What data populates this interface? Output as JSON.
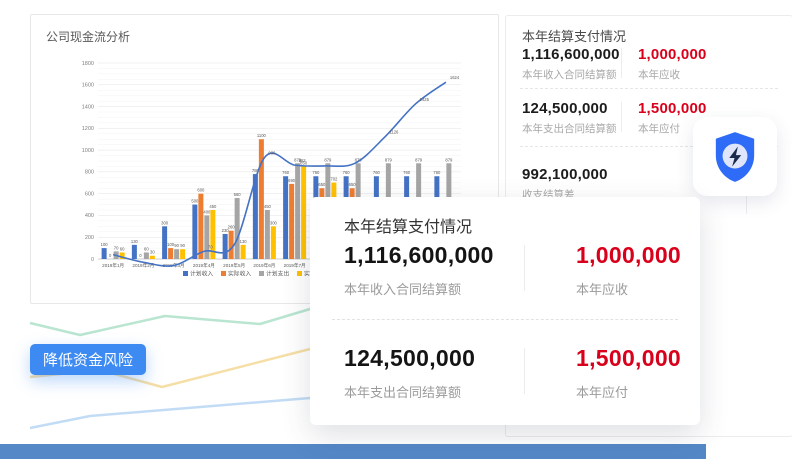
{
  "colors": {
    "badge_blue": "#3d8af2",
    "alert_red": "#d9001b",
    "strip_blue": "#5488c7",
    "shield_blue": "#2e6bf6",
    "bolt_navy": "#1b2a4a",
    "decor_green": "#b9e5d1",
    "decor_yellow": "#f6dfa6",
    "decor_blue": "#c3dcf5"
  },
  "chart_card": {
    "title": "公司现金流分析",
    "chart_data": {
      "type": "bar",
      "title": "公司现金流分析",
      "categories": [
        "2019年1月",
        "2019年2月",
        "2019年3月",
        "2019年4月",
        "2019年5月",
        "2019年6月",
        "2019年7月",
        "2019年8月",
        "2019年9月",
        "2019年10月",
        "2019年11月",
        "2019年12月"
      ],
      "series": [
        {
          "name": "计划收入",
          "color": "#4472c4",
          "values": [
            100,
            130,
            300,
            500,
            230,
            780,
            760,
            760,
            760,
            760,
            760,
            760
          ]
        },
        {
          "name": "实际收入",
          "color": "#ed7d31",
          "values": [
            0,
            0,
            100,
            600,
            260,
            1100,
            690,
            650,
            650,
            490,
            490,
            490
          ]
        },
        {
          "name": "计划支出",
          "color": "#a5a5a5",
          "values": [
            70,
            60,
            90,
            400,
            560,
            450,
            879,
            879,
            879,
            879,
            879,
            879
          ]
        },
        {
          "name": "实际支出",
          "color": "#ffc000",
          "values": [
            60,
            30,
            90,
            450,
            130,
            300,
            850,
            702,
            200,
            null,
            null,
            null
          ]
        }
      ],
      "line_series": {
        "name": "",
        "type": "line",
        "color": "#4472c4",
        "values": [
          40,
          -30,
          -60,
          70,
          130,
          930,
          862,
          855,
          880,
          1126,
          1425,
          1624
        ],
        "labels": [
          null,
          null,
          null,
          "70",
          null,
          "930",
          "862",
          null,
          null,
          "1126",
          "1425",
          "1624"
        ]
      },
      "xlabel": "",
      "ylabel": "",
      "ylim": [
        0,
        1800
      ],
      "ytick_step": 200,
      "grid": true,
      "legend_position": "bottom"
    }
  },
  "summary_panel": {
    "title": "本年结算支付情况",
    "rows": [
      {
        "left_value": "1,116,600,000",
        "left_label": "本年收入合同结算额",
        "right_value": "1,000,000",
        "right_label": "本年应收"
      },
      {
        "left_value": "124,500,000",
        "left_label": "本年支出合同结算额",
        "right_value": "1,500,000",
        "right_label": "本年应付"
      },
      {
        "left_value": "992,100,000",
        "left_label": "收支结算差"
      }
    ]
  },
  "overlay_card": {
    "title": "本年结算支付情况",
    "rows": [
      {
        "left_value": "1,116,600,000",
        "left_label": "本年收入合同结算额",
        "right_value": "1,000,000",
        "right_label": "本年应收"
      },
      {
        "left_value": "124,500,000",
        "left_label": "本年支出合同结算额",
        "right_value": "1,500,000",
        "right_label": "本年应付"
      }
    ]
  },
  "badge": {
    "label": "降低资金风险"
  },
  "icons": {
    "shield": "shield-lightning-icon"
  }
}
